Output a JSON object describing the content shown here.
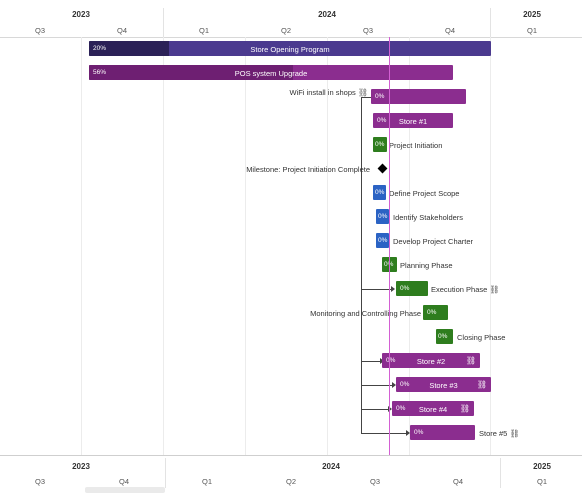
{
  "timescale": {
    "years": [
      "2023",
      "2024",
      "2025"
    ],
    "quarters": [
      "Q3",
      "Q4",
      "Q1",
      "Q2",
      "Q3",
      "Q4",
      "Q1"
    ]
  },
  "rows": [
    {
      "percent": "20%",
      "title": "Store Opening Program",
      "progress_fraction": 0.2,
      "color": "#4b3a8f"
    },
    {
      "percent": "56%",
      "title": "POS system Upgrade",
      "progress_fraction": 0.56,
      "color": "#8b2d8f"
    },
    {
      "percent": "0%",
      "label": "WiFi install in shops",
      "link_icon": "link-icon"
    },
    {
      "percent": "0%",
      "title": "Store #1"
    },
    {
      "percent": "0%",
      "label": "Project Initiation"
    },
    {
      "label": "Milestone: Project Initiation Complete"
    },
    {
      "percent": "0%",
      "label": "Define Project Scope"
    },
    {
      "percent": "0%",
      "label": "Identify Stakeholders"
    },
    {
      "percent": "0%",
      "label": "Develop Project Charter"
    },
    {
      "percent": "0%",
      "label": "Planning Phase"
    },
    {
      "percent": "0%",
      "label": "Execution Phase",
      "link_icon": "link-icon"
    },
    {
      "percent": "0%",
      "label": "Monitoring and Controlling Phase"
    },
    {
      "percent": "0%",
      "label": "Closing Phase"
    },
    {
      "percent": "0%",
      "title": "Store #2",
      "link_icon": "link-icon"
    },
    {
      "percent": "0%",
      "title": "Store #3",
      "link_icon": "link-icon"
    },
    {
      "percent": "0%",
      "title": "Store #4",
      "link_icon": "link-icon"
    },
    {
      "percent": "0%",
      "label": "Store #5",
      "link_icon": "link-icon"
    }
  ],
  "colors": {
    "purple": "#8b2d8f",
    "green": "#2e7d1e",
    "blue": "#2b63c4",
    "today_line": "#d35fd3"
  }
}
